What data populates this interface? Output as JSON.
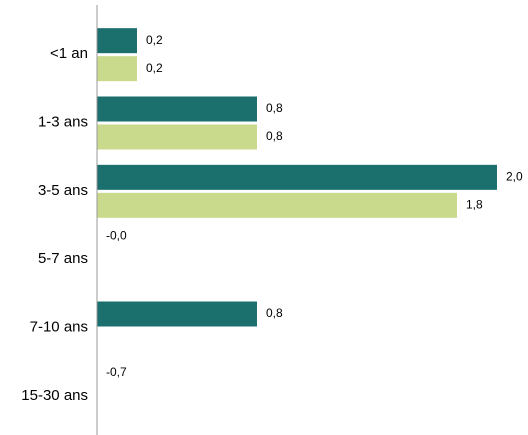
{
  "chart_data": {
    "type": "hbar",
    "categories": [
      "<1 an",
      "1-3 ans",
      "3-5 ans",
      "5-7 ans",
      "7-10 ans",
      "15-30 ans"
    ],
    "series": [
      {
        "color": "#1b6f6d",
        "values": [
          0.2,
          0.8,
          2.0,
          -0.0,
          0.8,
          -0.7
        ],
        "value_labels": [
          "0,2",
          "0,8",
          "2,0",
          "-0,0",
          "0,8",
          "-0,7"
        ]
      },
      {
        "color": "#c9da8c",
        "values": [
          0.2,
          0.8,
          1.8,
          null,
          null,
          null
        ],
        "value_labels": [
          "0,2",
          "0,8",
          "1,8",
          null,
          null,
          null
        ]
      }
    ],
    "xlim": [
      0,
      2.15
    ]
  }
}
